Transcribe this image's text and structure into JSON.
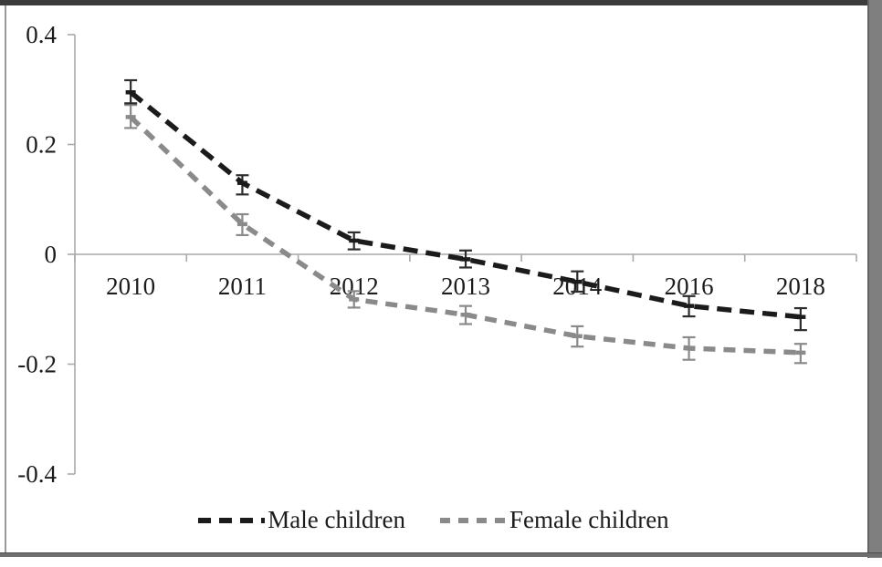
{
  "window": {
    "background": "#ffffff",
    "frame_top_color": "#3b3b3b",
    "frame_side_color": "#7f7f7f",
    "frame_bottom_color": "#6f6f6f"
  },
  "chart_data": {
    "type": "line",
    "title": "",
    "xlabel": "",
    "ylabel": "",
    "categories": [
      "2010",
      "2011",
      "2012",
      "2013",
      "2014",
      "2016",
      "2018"
    ],
    "series": [
      {
        "name": "Female children",
        "color": "#8a8a8a",
        "error_color": "#8a8a8a",
        "dash": [
          13,
          9
        ],
        "values": [
          0.25,
          0.055,
          -0.082,
          -0.11,
          -0.149,
          -0.171,
          -0.179
        ],
        "ci_low": [
          0.23,
          0.035,
          -0.097,
          -0.127,
          -0.168,
          -0.192,
          -0.198
        ],
        "ci_high": [
          0.272,
          0.073,
          -0.067,
          -0.094,
          -0.131,
          -0.151,
          -0.163
        ]
      },
      {
        "name": "Male children",
        "color": "#1b1b1b",
        "error_color": "#2d2d2d",
        "dash": [
          16,
          9
        ],
        "values": [
          0.295,
          0.13,
          0.025,
          -0.009,
          -0.05,
          -0.094,
          -0.114
        ],
        "ci_low": [
          0.275,
          0.109,
          0.009,
          -0.024,
          -0.068,
          -0.113,
          -0.138
        ],
        "ci_high": [
          0.317,
          0.144,
          0.04,
          0.007,
          -0.031,
          -0.076,
          -0.098
        ]
      }
    ],
    "legend_order": [
      "Male children",
      "Female children"
    ],
    "yticks": {
      "values": [
        0.4,
        0.2,
        0,
        -0.2,
        -0.4
      ],
      "labels": [
        "0.4",
        "0.2",
        "0",
        "-0.2",
        "-0.4"
      ]
    },
    "ylim": [
      -0.4,
      0.4
    ],
    "grid": "zero-baseline-only",
    "legend_position": "bottom-center",
    "axis_color": "#a9a9ad",
    "error_bars": true
  },
  "legend": {
    "male_label": "Male children",
    "female_label": "Female children"
  }
}
